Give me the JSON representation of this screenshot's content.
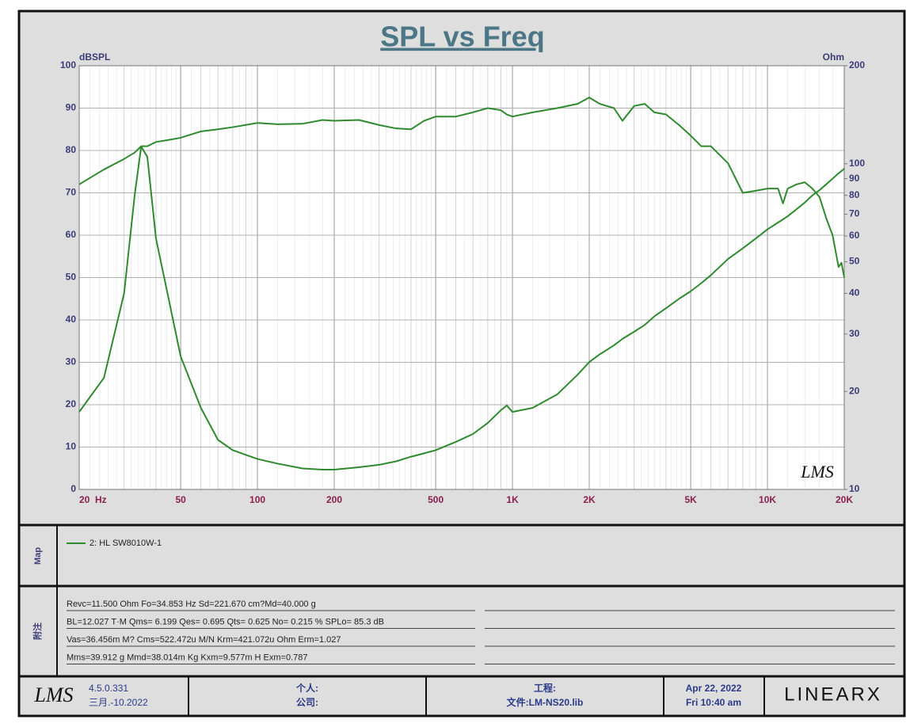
{
  "chart_data": {
    "type": "line",
    "title": "SPL vs Freq",
    "y_label": "dBSPL",
    "y2_label": "Ohm",
    "logo": "LMS",
    "x": [
      20,
      25,
      30,
      33,
      35,
      37,
      40,
      45,
      50,
      60,
      70,
      80,
      100,
      120,
      150,
      180,
      200,
      250,
      300,
      350,
      400,
      450,
      500,
      600,
      700,
      800,
      900,
      950,
      1000,
      1200,
      1500,
      1800,
      2000,
      2200,
      2500,
      2700,
      3000,
      3300,
      3600,
      4000,
      4500,
      5000,
      5500,
      6000,
      7000,
      8000,
      9000,
      10000,
      11000,
      11500,
      12000,
      13000,
      14000,
      15000,
      16000,
      17000,
      18000,
      19000,
      19500,
      20000
    ],
    "series": [
      {
        "name": "2: HL SW8010W-1",
        "color": "#2f8a2f",
        "values": [
          72,
          75.5,
          78,
          79.5,
          81,
          81,
          82,
          82.5,
          83,
          84.5,
          85,
          85.5,
          86.5,
          86.2,
          86.3,
          87.2,
          87,
          87.2,
          86,
          85.2,
          85,
          87,
          88,
          88,
          89,
          90,
          89.5,
          88.5,
          88,
          89,
          90,
          91,
          92.5,
          91,
          90,
          87,
          90.5,
          91,
          89,
          88.5,
          86,
          83.5,
          81,
          81,
          77,
          70,
          70.5,
          71,
          71,
          67.5,
          71,
          72,
          72.5,
          71,
          69,
          64,
          60,
          52.5,
          53.5,
          50
        ]
      },
      {
        "color": "#2f8a2f",
        "axis": "y2",
        "values": [
          17.3,
          22,
          40,
          80,
          113,
          105,
          59,
          38,
          25.6,
          17.8,
          14.2,
          13.2,
          12.4,
          12,
          11.6,
          11.5,
          11.5,
          11.7,
          11.9,
          12.2,
          12.6,
          12.9,
          13.2,
          14,
          14.8,
          16,
          17.5,
          18.1,
          17.3,
          17.8,
          19.6,
          22.5,
          24.6,
          26,
          27.7,
          29,
          30.5,
          32,
          34,
          36,
          38.5,
          40.6,
          43,
          45.5,
          51,
          55,
          59,
          62.9,
          66,
          67.5,
          69,
          72.5,
          76,
          80,
          83,
          86.5,
          90,
          93.5,
          95,
          96.6
        ]
      }
    ],
    "xlim": [
      20,
      20000
    ],
    "xscale": "log",
    "xticks": [
      {
        "value": 20,
        "label": "20  Hz"
      },
      50,
      100,
      200,
      500,
      {
        "value": 1000,
        "label": "1K"
      },
      {
        "value": 2000,
        "label": "2K"
      },
      {
        "value": 5000,
        "label": "5K"
      },
      {
        "value": 10000,
        "label": "10K"
      },
      {
        "value": 20000,
        "label": "20K"
      }
    ],
    "ylim": [
      0,
      100
    ],
    "yticks": [
      0,
      10,
      20,
      30,
      40,
      50,
      60,
      70,
      80,
      90,
      100
    ],
    "y2lim": [
      10,
      200
    ],
    "y2scale": "log",
    "y2ticks": [
      10,
      20,
      30,
      40,
      50,
      60,
      70,
      80,
      90,
      100,
      200
    ],
    "grid": true
  },
  "map_label": "Map",
  "notes_label": "附注",
  "notes": [
    "Revc=11.500 Ohm  Fo=34.853 Hz  Sd=221.670 cm?Md=40.000 g",
    "BL=12.027 T·M  Qms= 6.199  Qes= 0.695  Qts= 0.625  No= 0.215 %  SPLo= 85.3 dB",
    "Vas=36.456m M? Cms=522.472u M/N  Krm=421.072u Ohm  Erm=1.027",
    "Mms=39.912 g  Mmd=38.014m Kg  Kxm=9.577m H  Exm=0.787"
  ],
  "footer": {
    "logo": "LMS",
    "version": "4.5.0.331",
    "build_date": "三月.-10.2022",
    "person": "个人:",
    "company": "公司:",
    "project": "工程:",
    "file": "文件:LM-NS20.lib",
    "date": "Apr 22, 2022",
    "time": "Fri 10:40 am",
    "brand": "LINEARX"
  }
}
